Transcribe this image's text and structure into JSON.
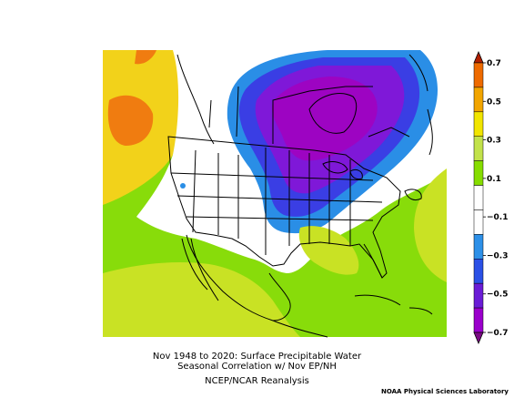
{
  "figure": {
    "caption_line1": "Nov 1948 to 2020: Surface Precipitable Water",
    "caption_line2": "Seasonal Correlation w/ Nov EP/NH",
    "caption_line3": "NCEP/NCAR Reanalysis",
    "credit": "NOAA Physical Sciences Laboratory"
  },
  "colorbar": {
    "labels": [
      "0.7",
      "0.5",
      "0.3",
      "0.1",
      "−0.1",
      "−0.3",
      "−0.5",
      "−0.7"
    ],
    "colors": [
      "#b22000",
      "#ee6a00",
      "#f2a500",
      "#f1e500",
      "#c2e24a",
      "#86dd00",
      "#ffffff",
      "#ffffff",
      "#2d90e8",
      "#2b50e6",
      "#6a1cd6",
      "#9a00cc",
      "#7a0a84"
    ]
  },
  "map_colors": {
    "strong_pos": "#f07c10",
    "pos_mid": "#f2c21c",
    "pos_low": "#d7e21c",
    "pos_weak": "#88dc0a",
    "neutral": "#ffffff",
    "neg_weak": "#2a8ee6",
    "neg_mid": "#3a3ee4",
    "neg_high": "#7f18d8",
    "neg_strong": "#9d04c2"
  }
}
